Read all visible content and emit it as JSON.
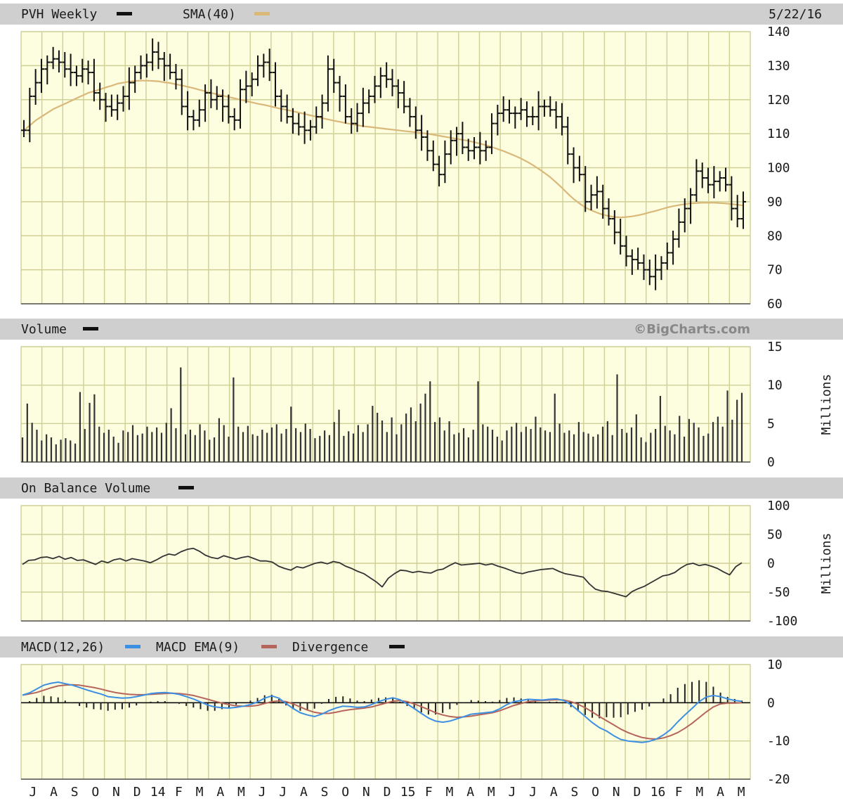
{
  "header": {
    "title": "PVH Weekly",
    "sma_label": "SMA(40)",
    "date": "5/22/16"
  },
  "volume_panel": {
    "label": "Volume",
    "watermark": "©BigCharts.com",
    "unit": "Millions"
  },
  "obv_panel": {
    "label": "On Balance Volume",
    "unit": "Millions"
  },
  "macd_panel": {
    "macd_label": "MACD(12,26)",
    "ema_label": "MACD EMA(9)",
    "div_label": "Divergence"
  },
  "colors": {
    "background": "#ffffff",
    "header_band": "#cfcfcf",
    "plot_bg": "#fdfde0",
    "grid": "#cfcf96",
    "price": "#111111",
    "sma": "#d9b87a",
    "macd": "#3d8fe3",
    "ema": "#b5655a"
  },
  "axes": {
    "price_ticks": [
      "140",
      "130",
      "120",
      "110",
      "100",
      "90",
      "80",
      "70",
      "60"
    ],
    "volume_ticks": [
      "15",
      "10",
      "5",
      "0"
    ],
    "obv_ticks": [
      "100",
      "50",
      "0",
      "-50",
      "-100"
    ],
    "macd_ticks": [
      "10",
      "0",
      "-10",
      "-20"
    ],
    "months": [
      "J",
      "A",
      "S",
      "O",
      "N",
      "D",
      "14",
      "F",
      "M",
      "A",
      "M",
      "J",
      "J",
      "A",
      "S",
      "O",
      "N",
      "D",
      "15",
      "F",
      "M",
      "A",
      "M",
      "J",
      "J",
      "A",
      "S",
      "O",
      "N",
      "D",
      "16",
      "F",
      "M",
      "A",
      "M"
    ]
  },
  "chart_data": [
    {
      "type": "line",
      "title": "PVH Weekly",
      "ylim": [
        60,
        140
      ],
      "grid": true,
      "series": [
        {
          "name": "PVH Weekly",
          "values": [
            111,
            121,
            125,
            129,
            131,
            132,
            131,
            129,
            128,
            127,
            129,
            128,
            122,
            120,
            118,
            117,
            119,
            121,
            125,
            128,
            130,
            131,
            134,
            132,
            130,
            128,
            126,
            118,
            115,
            114,
            117,
            122,
            120,
            121,
            118,
            115,
            114,
            123,
            124,
            126,
            130,
            131,
            128,
            121,
            118,
            115,
            113,
            112,
            111,
            112,
            115,
            119,
            129,
            125,
            121,
            115,
            113,
            116,
            119,
            121,
            124,
            127,
            126,
            124,
            122,
            118,
            115,
            111,
            109,
            105,
            101,
            98,
            104,
            108,
            110,
            106,
            105,
            106,
            105,
            106,
            113,
            116,
            117,
            116,
            116,
            117,
            115,
            115,
            118,
            118,
            117,
            115,
            112,
            104,
            100,
            98,
            90,
            92,
            93,
            88,
            85,
            81,
            77,
            74,
            73,
            72,
            70,
            68,
            70,
            72,
            75,
            79,
            84,
            88,
            92,
            99,
            97,
            95,
            96,
            97,
            95,
            88,
            85,
            90
          ]
        },
        {
          "name": "SMA(40)",
          "values": [
            111,
            112.4,
            113.9,
            115,
            116.1,
            117.2,
            118,
            118.8,
            119.6,
            120.4,
            121.2,
            122,
            122.5,
            123,
            123.6,
            124.1,
            124.7,
            125,
            125.3,
            125.5,
            125.6,
            125.6,
            125.5,
            125.4,
            125.1,
            124.9,
            124.5,
            124.2,
            123.8,
            123.4,
            122.9,
            122.5,
            122,
            121.6,
            121.2,
            120.8,
            120.4,
            120,
            119.6,
            119.2,
            118.8,
            118.5,
            118.1,
            117.7,
            117.3,
            117,
            116.6,
            116.2,
            115.8,
            115.4,
            115,
            114.6,
            114.2,
            113.8,
            113.5,
            113.1,
            112.8,
            112.5,
            112.2,
            112,
            111.8,
            111.6,
            111.4,
            111.2,
            111,
            110.8,
            110.6,
            110.4,
            110.2,
            110,
            109.7,
            109.4,
            109.1,
            108.8,
            108.5,
            108.2,
            107.9,
            107.5,
            107.1,
            106.6,
            106.1,
            105.5,
            104.9,
            104.2,
            103.5,
            102.7,
            101.8,
            100.8,
            99.7,
            98.5,
            97.2,
            95.7,
            94.1,
            92.4,
            90.8,
            89.5,
            88.3,
            87.5,
            86.8,
            86.2,
            85.8,
            85.5,
            85.4,
            85.5,
            85.7,
            86,
            86.4,
            86.9,
            87.3,
            87.8,
            88.3,
            88.7,
            89,
            89.3,
            89.5,
            89.6,
            89.7,
            89.7,
            89.7,
            89.6,
            89.5,
            89.3,
            89.1,
            88.9
          ]
        }
      ]
    },
    {
      "type": "bar",
      "title": "Volume",
      "ylabel": "Millions",
      "ylim": [
        0,
        15
      ],
      "grid": true,
      "values": [
        3.2,
        7.6,
        5.1,
        4.2,
        2.8,
        3.6,
        3.2,
        2.3,
        2.9,
        3.1,
        2.8,
        2.4,
        9.1,
        4.3,
        7.7,
        8.8,
        4.6,
        3.8,
        4.2,
        3.3,
        2.5,
        4.1,
        3.9,
        4.8,
        3.5,
        3.7,
        4.6,
        3.9,
        4.5,
        3.8,
        5.1,
        7.0,
        4.4,
        12.3,
        3.6,
        4.2,
        3.5,
        4.9,
        4.1,
        2.9,
        3.2,
        5.7,
        4.8,
        3.3,
        11.0,
        4.6,
        3.9,
        4.7,
        3.6,
        3.4,
        4.2,
        3.8,
        4.5,
        4.9,
        3.7,
        4.3,
        7.2,
        4.4,
        3.9,
        5.0,
        4.3,
        3.1,
        3.4,
        4.1,
        3.5,
        5.2,
        6.8,
        3.4,
        4.0,
        3.7,
        4.8,
        3.9,
        4.9,
        7.3,
        6.4,
        5.4,
        3.9,
        5.8,
        3.6,
        4.9,
        6.3,
        7.1,
        5.3,
        7.6,
        8.9,
        10.5,
        5.2,
        5.8,
        4.1,
        5.3,
        3.6,
        3.8,
        4.4,
        3.2,
        4.2,
        10.5,
        4.9,
        4.6,
        4.2,
        3.3,
        2.8,
        4.1,
        4.6,
        5.1,
        3.9,
        4.6,
        4.3,
        5.9,
        4.5,
        4.1,
        3.9,
        8.9,
        5.0,
        3.8,
        4.1,
        3.6,
        5.2,
        3.9,
        3.7,
        3.3,
        3.6,
        4.6,
        5.3,
        3.5,
        11.4,
        4.3,
        3.8,
        4.5,
        6.2,
        3.2,
        2.6,
        3.8,
        4.3,
        8.6,
        4.7,
        4.1,
        3.6,
        6.0,
        3.3,
        5.6,
        5.1,
        4.5,
        3.4,
        3.7,
        5.2,
        5.9,
        4.6,
        9.3,
        5.5,
        8.1,
        9.0
      ],
      "note_none": ""
    },
    {
      "type": "line",
      "title": "On Balance Volume",
      "ylabel": "Millions",
      "ylim": [
        -100,
        100
      ],
      "grid": true,
      "series": [
        {
          "name": "On Balance Volume",
          "values": [
            -2,
            5,
            6,
            10,
            11,
            8,
            12,
            7,
            10,
            5,
            6,
            2,
            -2,
            4,
            1,
            6,
            8,
            4,
            8,
            6,
            4,
            1,
            6,
            12,
            16,
            14,
            20,
            24,
            26,
            21,
            14,
            10,
            8,
            13,
            10,
            7,
            10,
            12,
            8,
            4,
            4,
            2,
            -5,
            -9,
            -12,
            -6,
            -8,
            -4,
            0,
            2,
            -1,
            3,
            1,
            -5,
            -9,
            -14,
            -18,
            -25,
            -32,
            -41,
            -26,
            -18,
            -12,
            -13,
            -16,
            -14,
            -16,
            -17,
            -12,
            -10,
            -4,
            1,
            -3,
            -2,
            -1,
            0,
            -3,
            -1,
            -5,
            -8,
            -12,
            -16,
            -18,
            -15,
            -13,
            -11,
            -10,
            -9,
            -14,
            -18,
            -20,
            -22,
            -24,
            -36,
            -45,
            -48,
            -49,
            -52,
            -55,
            -58,
            -49,
            -44,
            -40,
            -34,
            -28,
            -22,
            -20,
            -16,
            -8,
            -2,
            0,
            -4,
            -2,
            -5,
            -9,
            -15,
            -20,
            -6,
            1
          ]
        }
      ]
    },
    {
      "type": "line",
      "title": "MACD(12,26)",
      "ylim": [
        -20,
        10
      ],
      "grid": true,
      "series": [
        {
          "name": "MACD(12,26)",
          "values": [
            2.0,
            2.6,
            3.6,
            4.6,
            5.1,
            5.4,
            5.0,
            4.6,
            4.0,
            3.4,
            2.8,
            2.3,
            1.6,
            1.4,
            1.2,
            1.3,
            1.6,
            2.0,
            2.4,
            2.6,
            2.7,
            2.5,
            2.2,
            1.6,
            1.0,
            0.2,
            -0.6,
            -1.1,
            -1.3,
            -1.4,
            -1.2,
            -0.9,
            -0.5,
            0.2,
            1.2,
            1.8,
            1.2,
            -0.2,
            -1.5,
            -2.6,
            -3.2,
            -3.6,
            -3.0,
            -2.1,
            -1.4,
            -0.9,
            -1.0,
            -1.2,
            -1.1,
            -0.5,
            0.3,
            0.9,
            1.3,
            0.8,
            -0.3,
            -1.5,
            -2.8,
            -4.0,
            -4.8,
            -5.1,
            -4.8,
            -4.2,
            -3.6,
            -3.0,
            -2.8,
            -2.6,
            -2.4,
            -1.6,
            -0.5,
            0.3,
            0.6,
            0.9,
            0.8,
            0.7,
            0.9,
            1.0,
            0.6,
            -0.5,
            -2.0,
            -3.6,
            -5.2,
            -6.5,
            -7.4,
            -8.6,
            -9.6,
            -10.0,
            -10.2,
            -10.4,
            -10.1,
            -9.5,
            -8.4,
            -7.0,
            -5.0,
            -3.2,
            -1.5,
            0.3,
            1.5,
            1.9,
            1.6,
            1.0,
            0.6,
            0.4
          ]
        },
        {
          "name": "MACD EMA(9)",
          "values": [
            2.0,
            2.3,
            2.7,
            3.3,
            3.9,
            4.4,
            4.6,
            4.7,
            4.6,
            4.3,
            4.0,
            3.6,
            3.1,
            2.7,
            2.4,
            2.2,
            2.1,
            2.1,
            2.2,
            2.3,
            2.4,
            2.5,
            2.4,
            2.2,
            1.9,
            1.4,
            0.9,
            0.4,
            -0.1,
            -0.5,
            -0.8,
            -0.9,
            -0.9,
            -0.7,
            -0.2,
            0.3,
            0.5,
            0.3,
            -0.3,
            -1.1,
            -1.9,
            -2.5,
            -2.8,
            -2.8,
            -2.5,
            -2.1,
            -1.8,
            -1.6,
            -1.4,
            -1.1,
            -0.6,
            -0.1,
            0.4,
            0.6,
            0.3,
            -0.3,
            -1.0,
            -1.8,
            -2.6,
            -3.2,
            -3.6,
            -3.8,
            -3.7,
            -3.5,
            -3.2,
            -2.9,
            -2.6,
            -2.1,
            -1.4,
            -0.7,
            -0.2,
            0.3,
            0.5,
            0.6,
            0.7,
            0.8,
            0.7,
            0.3,
            -0.4,
            -1.3,
            -2.4,
            -3.6,
            -4.7,
            -5.8,
            -6.9,
            -7.8,
            -8.5,
            -9.1,
            -9.4,
            -9.5,
            -9.2,
            -8.6,
            -7.8,
            -6.7,
            -5.4,
            -3.9,
            -2.4,
            -1.1,
            -0.3,
            -0.1,
            -0.1,
            0.0
          ]
        }
      ]
    }
  ]
}
